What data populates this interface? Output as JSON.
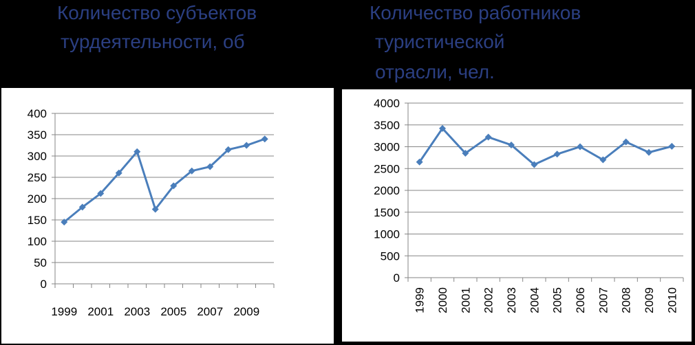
{
  "chart_data": [
    {
      "type": "line",
      "title_lines": [
        "Количество субъектов",
        "турдеятельности, об"
      ],
      "categories": [
        "1999",
        null,
        "2001",
        null,
        "2003",
        null,
        "2005",
        null,
        "2007",
        null,
        "2009",
        null
      ],
      "values": [
        145,
        180,
        212,
        260,
        310,
        175,
        230,
        265,
        275,
        315,
        325,
        340
      ],
      "color": "#4a7ebb",
      "ylim": [
        0,
        400
      ],
      "yticks": [
        0,
        50,
        100,
        150,
        200,
        250,
        300,
        350,
        400
      ],
      "grid": true
    },
    {
      "type": "line",
      "title_lines": [
        "Количество работников",
        "туристической",
        "отрасли, чел."
      ],
      "categories": [
        "1999",
        "2000",
        "2001",
        "2002",
        "2003",
        "2004",
        "2005",
        "2006",
        "2007",
        "2008",
        "2009",
        "2010"
      ],
      "values": [
        2650,
        3420,
        2850,
        3220,
        3040,
        2590,
        2830,
        3000,
        2700,
        3110,
        2870,
        3010
      ],
      "color": "#4a7ebb",
      "ylim": [
        0,
        4000
      ],
      "yticks": [
        0,
        500,
        1000,
        1500,
        2000,
        2500,
        3000,
        3500,
        4000
      ],
      "grid": true
    }
  ]
}
